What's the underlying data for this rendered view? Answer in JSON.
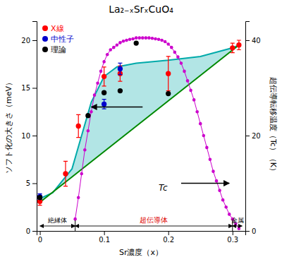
{
  "chart_data": {
    "type": "line",
    "title": "La₂₋ₓSrₓCuO₄",
    "x_label": "Sr濃度（x）",
    "y_label": "ソフト化の大きさ（meV）",
    "y2_label": "超伝導転移温度（Tc）（K）",
    "xlim": [
      -0.005,
      0.32
    ],
    "xticks": [
      0,
      0.1,
      0.2,
      0.3
    ],
    "ylim": [
      0,
      22
    ],
    "yticks": [
      0,
      5,
      10,
      15,
      20
    ],
    "y2lim": [
      0,
      44
    ],
    "y2ticks": [
      0,
      20,
      40
    ],
    "legend": "upper left",
    "series": [
      {
        "type": "area",
        "color": "#00aaaa",
        "x": [
          0.0,
          0.02,
          0.05,
          0.08,
          0.1,
          0.12,
          0.15,
          0.2,
          0.25,
          0.3,
          0.31
        ],
        "values": [
          3.4,
          4.0,
          6.5,
          13.5,
          16.2,
          17.2,
          17.6,
          17.9,
          18.3,
          19.2,
          19.5
        ]
      },
      {
        "type": "line",
        "color": "#008800",
        "x": [
          0.0,
          0.31
        ],
        "values": [
          3.0,
          19.5
        ]
      },
      {
        "type": "line",
        "color": "#cc00cc",
        "marker": "circle",
        "axis": "y2",
        "x": [
          0.055,
          0.06,
          0.065,
          0.07,
          0.075,
          0.08,
          0.085,
          0.09,
          0.095,
          0.1,
          0.105,
          0.11,
          0.115,
          0.12,
          0.125,
          0.13,
          0.135,
          0.14,
          0.145,
          0.15,
          0.155,
          0.16,
          0.165,
          0.17,
          0.175,
          0.18,
          0.185,
          0.19,
          0.195,
          0.2,
          0.205,
          0.21,
          0.215,
          0.22,
          0.225,
          0.23,
          0.235,
          0.24,
          0.245,
          0.25,
          0.255,
          0.26,
          0.265,
          0.27,
          0.275,
          0.28,
          0.285,
          0.29,
          0.295,
          0.3,
          0.305,
          0.31
        ],
        "values": [
          2.5,
          7.0,
          12.0,
          17.0,
          21.0,
          25.0,
          28.5,
          31.0,
          33.5,
          35.5,
          37.0,
          38.0,
          38.5,
          39.0,
          39.5,
          39.8,
          40.0,
          40.2,
          40.3,
          40.5,
          40.5,
          40.5,
          40.5,
          40.5,
          40.4,
          40.3,
          40.2,
          40.0,
          39.7,
          39.2,
          38.5,
          37.5,
          36.5,
          35.2,
          33.5,
          31.5,
          29.5,
          27.5,
          25.0,
          22.5,
          20.0,
          17.5,
          15.0,
          12.5,
          10.5,
          8.5,
          6.5,
          5.0,
          3.5,
          2.5,
          1.5,
          0.5
        ]
      },
      {
        "name": "X線",
        "type": "scatter",
        "marker": "circle",
        "color": "#ff0000",
        "x": [
          0.0,
          0.04,
          0.06,
          0.1,
          0.125,
          0.2,
          0.3,
          0.31
        ],
        "values": [
          3.1,
          6.0,
          11.0,
          16.2,
          16.5,
          16.5,
          19.2,
          19.5
        ],
        "error": [
          0.4,
          1.3,
          1.2,
          1.0,
          0.8,
          1.8,
          0.5,
          0.5
        ]
      },
      {
        "name": "中性子",
        "type": "scatter",
        "marker": "circle",
        "color": "#0000cc",
        "x": [
          0.0,
          0.1,
          0.125
        ],
        "values": [
          3.6,
          13.3,
          17.0
        ],
        "error": [
          0.3,
          0.5,
          0.6
        ]
      },
      {
        "name": "理論",
        "type": "scatter",
        "marker": "circle",
        "color": "#000000",
        "x": [
          0.0,
          0.075,
          0.1,
          0.125,
          0.15,
          0.2
        ],
        "values": [
          3.5,
          12.1,
          14.5,
          14.7,
          19.7,
          14.4
        ]
      }
    ],
    "annotations": [
      {
        "text": "Tc",
        "x": 0.185,
        "y": 4.2
      }
    ],
    "arrows": [
      {
        "from_x": 0.16,
        "to_x": 0.08,
        "y": 13.0
      },
      {
        "from_x": 0.22,
        "to_x": 0.295,
        "y": 5.0
      }
    ],
    "regions": [
      {
        "text": "絶縁体",
        "from": 0.0,
        "to": 0.055
      },
      {
        "text": "超伝導体",
        "from": 0.055,
        "to": 0.3,
        "color": "#dd0000"
      },
      {
        "text": "金属",
        "from": 0.3,
        "to": 0.315
      }
    ]
  }
}
